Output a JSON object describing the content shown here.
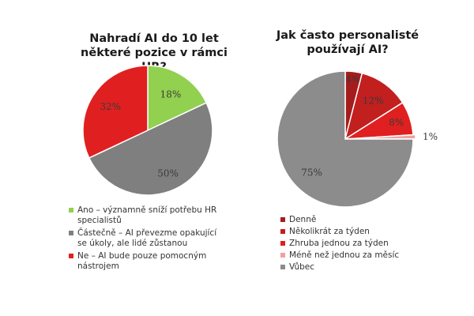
{
  "chart_data": [
    {
      "type": "pie",
      "title": "Nahradí AI do 10 let\nněkteré pozice v rámci HR?",
      "slices": [
        {
          "label": "Ano – významně sníží potřebu HR specialistů",
          "value": 18,
          "display": "18%",
          "color": "#92d050"
        },
        {
          "label": "Částečně – AI převezme opakující se úkoly, ale lidé zůstanou",
          "value": 50,
          "display": "50%",
          "color": "#7f7f7f"
        },
        {
          "label": "Ne – AI bude pouze pomocným nástrojem",
          "value": 32,
          "display": "32%",
          "color": "#e02020"
        }
      ],
      "legend_position": "bottom"
    },
    {
      "type": "pie",
      "title": "Jak často personalisté\npoužívají AI?",
      "slices": [
        {
          "label": "Denně",
          "value": 4,
          "display": "4%",
          "color": "#a51c1c"
        },
        {
          "label": "Několikrát za týden",
          "value": 12,
          "display": "12%",
          "color": "#c21f1f"
        },
        {
          "label": "Zhruba jednou za týden",
          "value": 8,
          "display": "8%",
          "color": "#e02020"
        },
        {
          "label": "Méně než jednou za měsíc",
          "value": 1,
          "display": "1%",
          "color": "#f0a0a0"
        },
        {
          "label": "Vůbec",
          "value": 75,
          "display": "75%",
          "color": "#8c8c8c"
        }
      ],
      "legend_position": "bottom"
    }
  ]
}
